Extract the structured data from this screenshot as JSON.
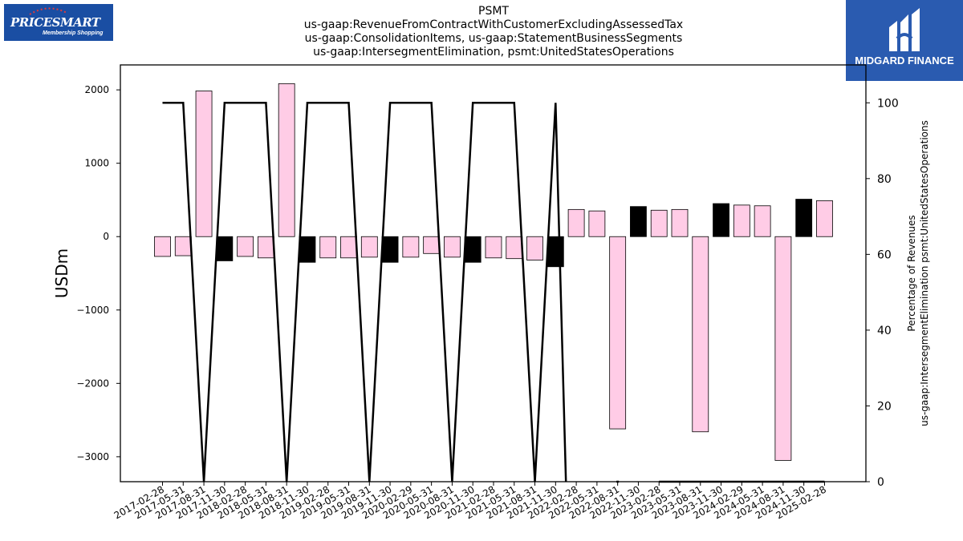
{
  "header": {
    "title_lines": [
      "PSMT",
      "us-gaap:RevenueFromContractWithCustomerExcludingAssessedTax",
      "us-gaap:ConsolidationItems, us-gaap:StatementBusinessSegments",
      "us-gaap:IntersegmentElimination, psmt:UnitedStatesOperations"
    ]
  },
  "logos": {
    "left": {
      "brand": "PRICESMART",
      "tagline": "Membership Shopping"
    },
    "right": {
      "wordmark": "MIDGARD FINANCE"
    }
  },
  "chart_data": {
    "type": "bar",
    "categories": [
      "2017-02-28",
      "2017-05-31",
      "2017-08-31",
      "2017-11-30",
      "2018-02-28",
      "2018-05-31",
      "2018-08-31",
      "2018-11-30",
      "2019-02-28",
      "2019-05-31",
      "2019-08-31",
      "2019-11-30",
      "2020-02-29",
      "2020-05-31",
      "2020-08-31",
      "2020-11-30",
      "2021-02-28",
      "2021-05-31",
      "2021-08-31",
      "2021-11-30",
      "2022-02-28",
      "2022-05-31",
      "2022-08-31",
      "2022-11-30",
      "2023-02-28",
      "2023-05-31",
      "2023-08-31",
      "2023-11-30",
      "2024-02-29",
      "2024-05-31",
      "2024-08-31",
      "2024-11-30",
      "2025-02-28"
    ],
    "bars": {
      "values": [
        -270,
        -260,
        1985,
        -330,
        -270,
        -290,
        2085,
        -350,
        -290,
        -290,
        -280,
        -350,
        -280,
        -230,
        -280,
        -350,
        -290,
        -300,
        -320,
        -410,
        370,
        350,
        -2620,
        410,
        360,
        370,
        -2660,
        450,
        430,
        420,
        -3050,
        510,
        490
      ],
      "highlight": [
        false,
        false,
        false,
        true,
        false,
        false,
        false,
        true,
        false,
        false,
        false,
        true,
        false,
        false,
        false,
        true,
        false,
        false,
        false,
        true,
        false,
        false,
        false,
        true,
        false,
        false,
        false,
        true,
        false,
        false,
        false,
        true,
        false
      ],
      "color_normal": "#ffcce6",
      "color_highlight": "#000000"
    },
    "line": {
      "x_index": [
        0,
        1,
        2,
        3,
        4,
        5,
        6,
        7,
        8,
        9,
        10,
        11,
        12,
        13,
        14,
        15,
        16,
        17,
        18,
        19,
        19.5,
        20,
        21,
        22,
        23,
        24,
        25,
        26,
        27,
        28,
        29,
        30,
        31,
        32
      ],
      "values": [
        100,
        100,
        0,
        100,
        100,
        100,
        0,
        100,
        100,
        100,
        0,
        100,
        100,
        100,
        0,
        100,
        100,
        100,
        0,
        100,
        0,
        null,
        null,
        0,
        null,
        0,
        0,
        0,
        0,
        0,
        0,
        0,
        0,
        0
      ],
      "color": "#000000"
    },
    "ylabel": "USDm",
    "y2label_lines": [
      "Percentage of Revenues",
      "us-gaap:IntersegmentElimination psmt:UnitedStatesOperations"
    ],
    "ylim": [
      -3340,
      2340
    ],
    "y_ticks": [
      2000,
      1000,
      0,
      -1000,
      -2000,
      -3000
    ],
    "y_tick_labels": [
      "2000",
      "1000",
      "0",
      "−1000",
      "−2000",
      "−3000"
    ],
    "y2lim": [
      0,
      110
    ],
    "y2_ticks": [
      100,
      80,
      60,
      40,
      20,
      0
    ],
    "y2_tick_labels": [
      "100",
      "80",
      "60",
      "40",
      "20",
      "0"
    ],
    "grid": false,
    "legend": "none"
  }
}
